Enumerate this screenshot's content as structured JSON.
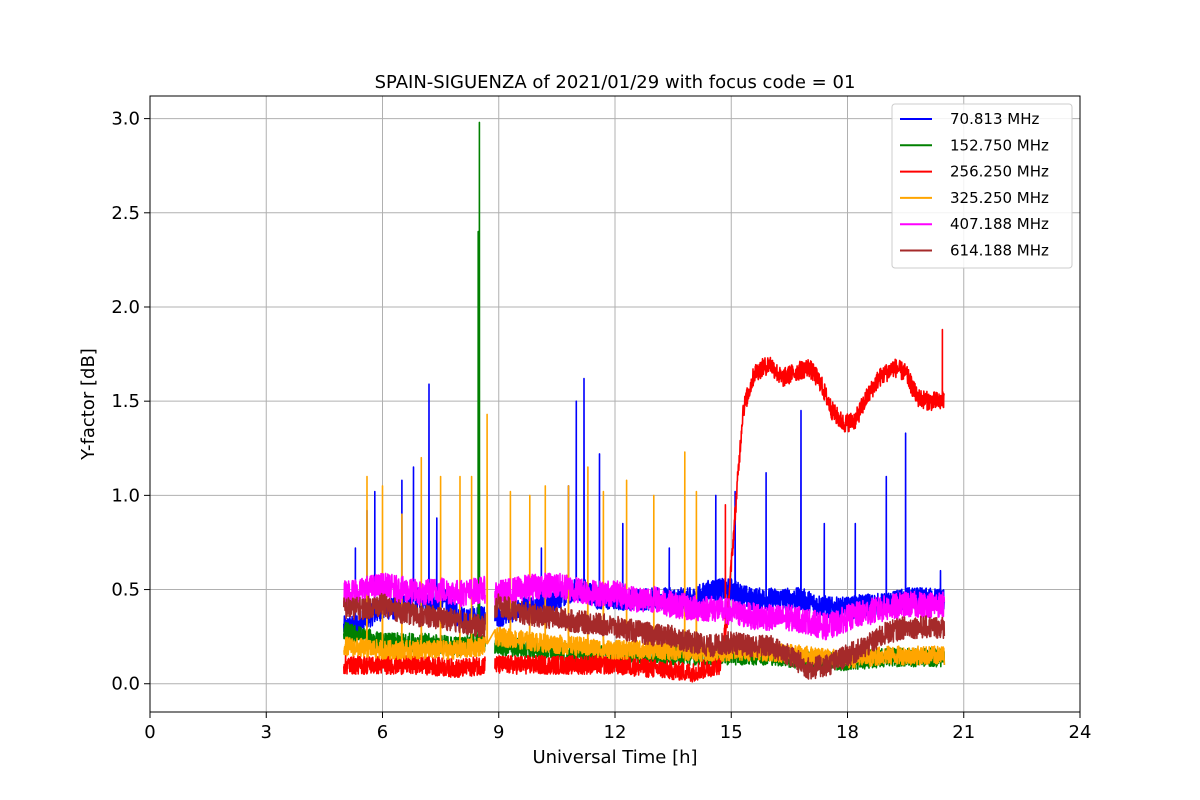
{
  "chart_data": {
    "type": "line",
    "title": "SPAIN-SIGUENZA of 2021/01/29 with focus code = 01",
    "xlabel": "Universal Time [h]",
    "ylabel": "Y-factor [dB]",
    "xlim": [
      0,
      24
    ],
    "ylim": [
      -0.15,
      3.12
    ],
    "xticks": [
      0,
      3,
      6,
      9,
      12,
      15,
      18,
      21,
      24
    ],
    "yticks": [
      0.0,
      0.5,
      1.0,
      1.5,
      2.0,
      2.5,
      3.0
    ],
    "xtick_labels": [
      "0",
      "3",
      "6",
      "9",
      "12",
      "15",
      "18",
      "21",
      "24"
    ],
    "ytick_labels": [
      "0.0",
      "0.5",
      "1.0",
      "1.5",
      "2.0",
      "2.5",
      "3.0"
    ],
    "grid": true,
    "legend_position": "top-right",
    "x_range_of_data": [
      5.0,
      20.5
    ],
    "gap": [
      8.65,
      8.9
    ],
    "series": [
      {
        "name": " 70.813 MHz",
        "color": "#0000ff",
        "x": [
          5.0,
          5.3,
          5.6,
          6.0,
          6.3,
          6.8,
          7.2,
          7.6,
          8.0,
          8.4,
          9.0,
          9.5,
          10.0,
          10.5,
          11.0,
          11.2,
          11.6,
          12.0,
          12.5,
          13.0,
          13.5,
          14.0,
          14.5,
          15.0,
          15.5,
          16.0,
          16.5,
          16.8,
          17.2,
          17.6,
          18.0,
          18.5,
          19.0,
          19.5,
          20.0,
          20.5
        ],
        "values": [
          0.3,
          0.3,
          0.35,
          0.4,
          0.4,
          0.45,
          0.45,
          0.45,
          0.35,
          0.35,
          0.35,
          0.4,
          0.42,
          0.45,
          0.5,
          0.5,
          0.45,
          0.45,
          0.45,
          0.45,
          0.45,
          0.45,
          0.5,
          0.5,
          0.45,
          0.45,
          0.45,
          0.45,
          0.42,
          0.4,
          0.4,
          0.42,
          0.42,
          0.45,
          0.45,
          0.45
        ],
        "peaks": [
          [
            5.3,
            0.72
          ],
          [
            5.6,
            0.92
          ],
          [
            5.8,
            1.02
          ],
          [
            6.5,
            1.08
          ],
          [
            6.8,
            1.15
          ],
          [
            7.2,
            1.59
          ],
          [
            7.4,
            0.88
          ],
          [
            8.5,
            0.52
          ],
          [
            10.1,
            0.72
          ],
          [
            10.8,
            1.05
          ],
          [
            11.0,
            1.5
          ],
          [
            11.2,
            1.62
          ],
          [
            11.6,
            1.22
          ],
          [
            12.2,
            0.85
          ],
          [
            13.4,
            0.72
          ],
          [
            14.6,
            1.0
          ],
          [
            15.1,
            1.02
          ],
          [
            15.9,
            1.12
          ],
          [
            16.8,
            1.45
          ],
          [
            17.4,
            0.85
          ],
          [
            18.2,
            0.85
          ],
          [
            19.0,
            1.1
          ],
          [
            19.5,
            1.33
          ],
          [
            20.4,
            0.6
          ]
        ]
      },
      {
        "name": "152.750 MHz",
        "color": "#008000",
        "x": [
          5.0,
          6.0,
          7.0,
          8.0,
          8.4,
          9.0,
          10.0,
          11.0,
          12.0,
          13.0,
          14.0,
          15.0,
          16.0,
          17.0,
          18.0,
          19.0,
          20.0,
          20.5
        ],
        "values": [
          0.28,
          0.22,
          0.22,
          0.2,
          0.22,
          0.2,
          0.18,
          0.16,
          0.15,
          0.15,
          0.15,
          0.15,
          0.15,
          0.12,
          0.12,
          0.14,
          0.14,
          0.14
        ],
        "peaks": [
          [
            8.5,
            2.98
          ],
          [
            8.47,
            2.4
          ]
        ]
      },
      {
        "name": "256.250 MHz",
        "color": "#ff0000",
        "x": [
          5.0,
          6.0,
          7.0,
          8.0,
          8.6,
          9.0,
          10.0,
          11.0,
          12.0,
          13.0,
          14.0,
          14.7,
          14.9,
          15.1,
          15.3,
          15.6,
          16.0,
          16.3,
          16.6,
          17.0,
          17.3,
          17.6,
          17.9,
          18.2,
          18.5,
          18.8,
          19.2,
          19.5,
          19.8,
          20.1,
          20.5
        ],
        "values": [
          0.1,
          0.1,
          0.1,
          0.08,
          0.1,
          0.1,
          0.1,
          0.1,
          0.1,
          0.08,
          0.06,
          0.1,
          0.35,
          0.9,
          1.45,
          1.65,
          1.7,
          1.62,
          1.65,
          1.68,
          1.6,
          1.45,
          1.38,
          1.4,
          1.52,
          1.62,
          1.68,
          1.65,
          1.52,
          1.5,
          1.5
        ],
        "peaks": [
          [
            20.45,
            1.88
          ],
          [
            14.85,
            0.95
          ]
        ]
      },
      {
        "name": "325.250 MHz",
        "color": "#ffa500",
        "x": [
          5.0,
          6.0,
          7.0,
          8.0,
          8.6,
          9.0,
          10.0,
          11.0,
          12.0,
          13.0,
          14.0,
          15.0,
          16.0,
          17.0,
          18.0,
          19.0,
          20.0,
          20.5
        ],
        "values": [
          0.2,
          0.18,
          0.18,
          0.18,
          0.2,
          0.25,
          0.22,
          0.2,
          0.18,
          0.18,
          0.17,
          0.17,
          0.17,
          0.15,
          0.13,
          0.15,
          0.15,
          0.15
        ],
        "peaks": [
          [
            5.6,
            1.1
          ],
          [
            6.0,
            1.05
          ],
          [
            6.5,
            0.9
          ],
          [
            7.0,
            1.2
          ],
          [
            7.5,
            1.1
          ],
          [
            8.0,
            1.1
          ],
          [
            8.3,
            1.1
          ],
          [
            8.7,
            1.43
          ],
          [
            9.3,
            1.02
          ],
          [
            9.8,
            1.0
          ],
          [
            10.2,
            1.05
          ],
          [
            10.8,
            1.05
          ],
          [
            11.3,
            1.15
          ],
          [
            11.7,
            1.02
          ],
          [
            12.3,
            1.08
          ],
          [
            13.0,
            1.0
          ],
          [
            13.8,
            1.23
          ],
          [
            14.1,
            1.02
          ]
        ]
      },
      {
        "name": "407.188 MHz",
        "color": "#ff00ff",
        "x": [
          5.0,
          5.5,
          6.0,
          6.5,
          7.0,
          7.5,
          8.0,
          8.6,
          9.0,
          9.5,
          10.0,
          10.5,
          11.0,
          11.5,
          12.0,
          12.5,
          13.0,
          13.5,
          14.0,
          14.5,
          15.0,
          15.5,
          16.0,
          16.5,
          17.0,
          17.5,
          18.0,
          18.5,
          19.0,
          19.5,
          20.0,
          20.5
        ],
        "values": [
          0.48,
          0.5,
          0.52,
          0.5,
          0.48,
          0.5,
          0.48,
          0.5,
          0.48,
          0.5,
          0.52,
          0.52,
          0.5,
          0.48,
          0.48,
          0.45,
          0.45,
          0.42,
          0.4,
          0.4,
          0.38,
          0.36,
          0.35,
          0.35,
          0.33,
          0.3,
          0.35,
          0.38,
          0.4,
          0.42,
          0.42,
          0.42
        ],
        "peaks": []
      },
      {
        "name": "614.188 MHz",
        "color": "#a52a2a",
        "x": [
          5.0,
          5.5,
          6.0,
          6.5,
          7.0,
          7.5,
          8.0,
          8.6,
          9.0,
          9.5,
          10.0,
          10.5,
          11.0,
          11.5,
          12.0,
          12.5,
          13.0,
          13.5,
          14.0,
          14.5,
          15.0,
          15.5,
          16.0,
          16.5,
          17.0,
          17.5,
          18.0,
          18.5,
          19.0,
          19.5,
          20.0,
          20.5
        ],
        "values": [
          0.4,
          0.4,
          0.42,
          0.38,
          0.36,
          0.35,
          0.33,
          0.3,
          0.42,
          0.38,
          0.36,
          0.35,
          0.33,
          0.32,
          0.3,
          0.28,
          0.26,
          0.25,
          0.22,
          0.2,
          0.22,
          0.2,
          0.2,
          0.15,
          0.08,
          0.1,
          0.15,
          0.2,
          0.27,
          0.3,
          0.3,
          0.3
        ],
        "peaks": []
      }
    ]
  }
}
